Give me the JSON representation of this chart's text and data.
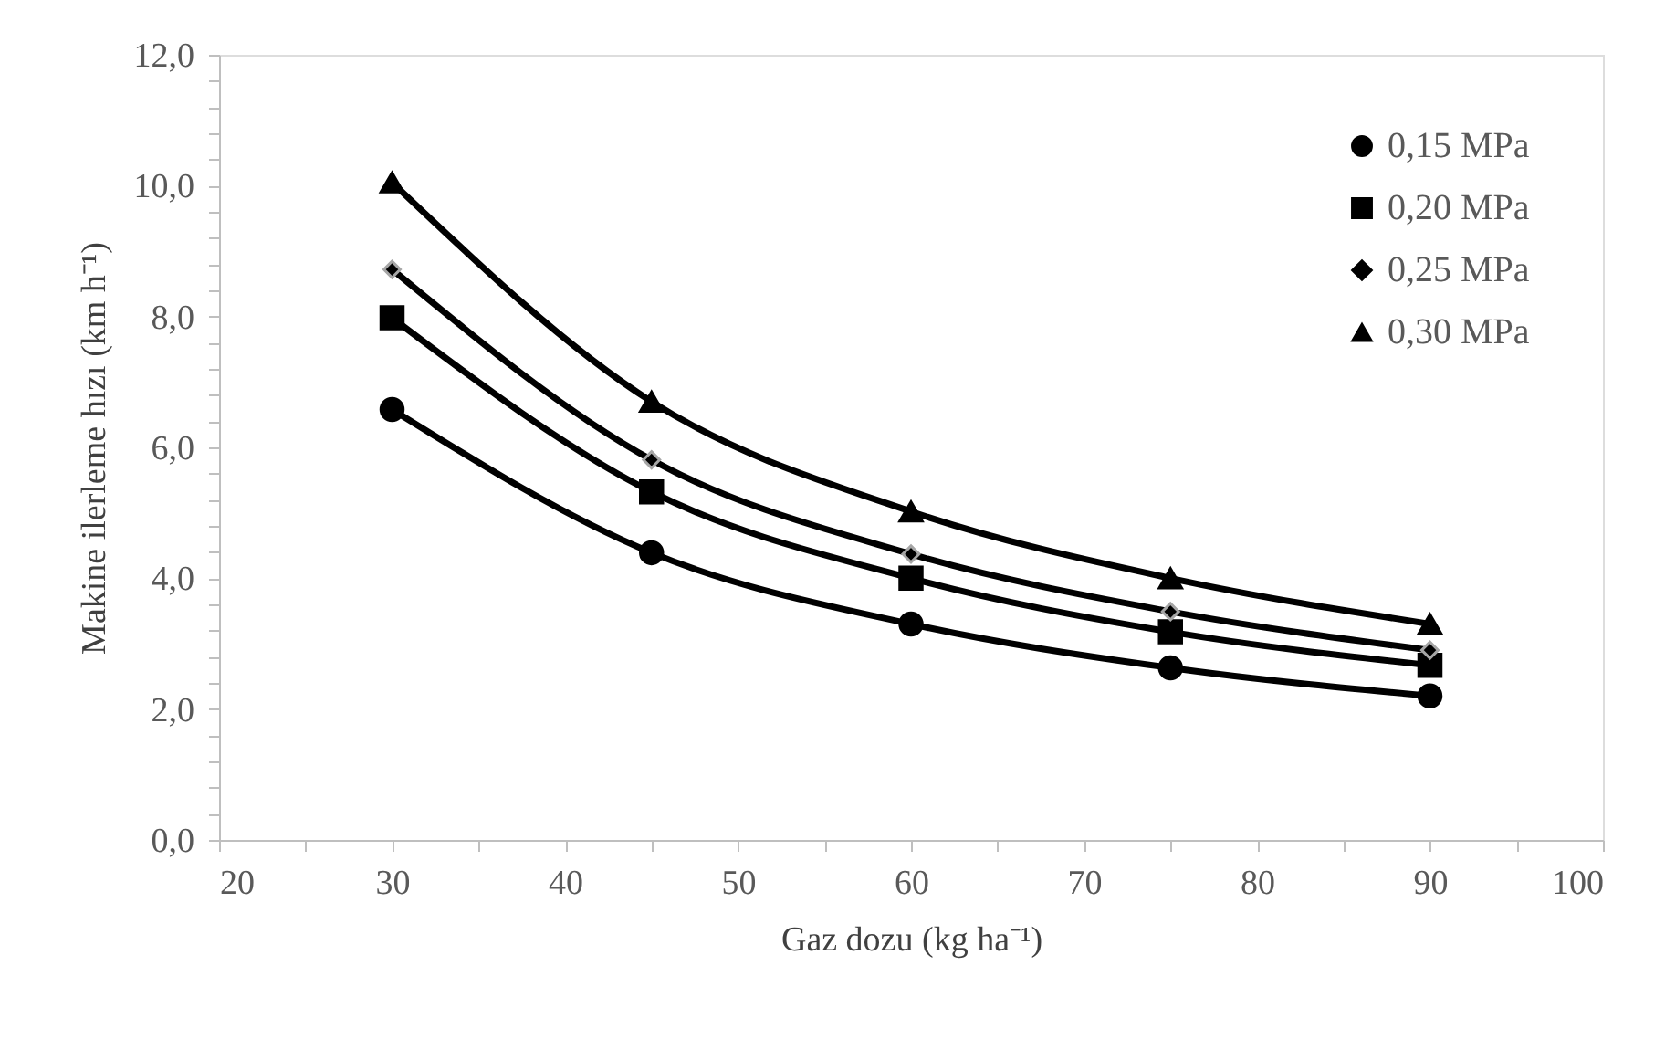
{
  "chart_data": {
    "type": "line",
    "xlabel": "Gaz dozu (kg ha⁻¹)",
    "ylabel": "Makine ilerleme hızı (km h⁻¹)",
    "x": [
      30,
      45,
      60,
      75,
      90
    ],
    "series": [
      {
        "name": "0,15 MPa",
        "color": "#000000",
        "marker": "circle",
        "values": [
          6.58,
          4.39,
          3.3,
          2.63,
          2.2
        ]
      },
      {
        "name": "0,20 MPa",
        "color": "#000000",
        "marker": "square",
        "values": [
          7.98,
          5.32,
          4.0,
          3.18,
          2.67
        ]
      },
      {
        "name": "0,25 MPa",
        "color": "#000000",
        "marker": "diamond",
        "values": [
          8.72,
          5.81,
          4.37,
          3.49,
          2.9
        ]
      },
      {
        "name": "0,30 MPa",
        "color": "#000000",
        "marker": "triangle",
        "values": [
          10.05,
          6.7,
          5.02,
          4.0,
          3.3
        ]
      }
    ],
    "xlim": [
      20,
      100
    ],
    "xticks": [
      20,
      {
        "value": 25,
        "label": null
      },
      30,
      {
        "value": 35,
        "label": null
      },
      40,
      {
        "value": 45,
        "label": null
      },
      50,
      {
        "value": 55,
        "label": null
      },
      60,
      {
        "value": 65,
        "label": null
      },
      70,
      {
        "value": 75,
        "label": null
      },
      80,
      {
        "value": 85,
        "label": null
      },
      90,
      {
        "value": 95,
        "label": null
      },
      100
    ],
    "ylim": [
      0,
      12
    ],
    "yticks": [
      {
        "value": 0,
        "label": "0,0"
      },
      {
        "value": 0.4,
        "label": null
      },
      {
        "value": 0.8,
        "label": null
      },
      {
        "value": 1.2,
        "label": null
      },
      {
        "value": 1.6,
        "label": null
      },
      {
        "value": 2,
        "label": "2,0"
      },
      {
        "value": 2.4,
        "label": null
      },
      {
        "value": 2.8,
        "label": null
      },
      {
        "value": 3.2,
        "label": null
      },
      {
        "value": 3.6,
        "label": null
      },
      {
        "value": 4,
        "label": "4,0"
      },
      {
        "value": 4.4,
        "label": null
      },
      {
        "value": 4.8,
        "label": null
      },
      {
        "value": 5.2,
        "label": null
      },
      {
        "value": 5.6,
        "label": null
      },
      {
        "value": 6,
        "label": "6,0"
      },
      {
        "value": 6.4,
        "label": null
      },
      {
        "value": 6.8,
        "label": null
      },
      {
        "value": 7.2,
        "label": null
      },
      {
        "value": 7.6,
        "label": null
      },
      {
        "value": 8,
        "label": "8,0"
      },
      {
        "value": 8.4,
        "label": null
      },
      {
        "value": 8.8,
        "label": null
      },
      {
        "value": 9.2,
        "label": null
      },
      {
        "value": 9.6,
        "label": null
      },
      {
        "value": 10,
        "label": "10,0"
      },
      {
        "value": 10.4,
        "label": null
      },
      {
        "value": 10.8,
        "label": null
      },
      {
        "value": 11.2,
        "label": null
      },
      {
        "value": 11.6,
        "label": null
      },
      {
        "value": 12,
        "label": "12,0"
      }
    ],
    "grid": false,
    "legend": "top right",
    "line_style": "solid"
  }
}
